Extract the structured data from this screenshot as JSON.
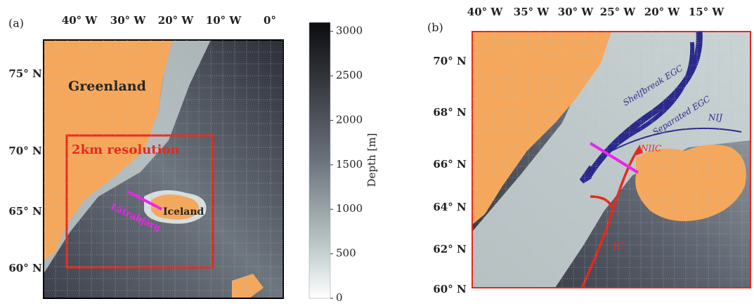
{
  "panel_a": {
    "label": "(a)",
    "lon_labels": [
      "40° W",
      "30° W",
      "20° W",
      "10° W",
      "0°"
    ],
    "lat_labels": [
      "75° N",
      "70° N",
      "65° N",
      "60° N"
    ],
    "annotations": {
      "greenland": "Greenland",
      "resolution": "2km resolution",
      "latrabjarg": "Látrabjarg",
      "iceland": "Iceland"
    }
  },
  "colorbar": {
    "label": "Depth [m]",
    "lim": [
      0,
      3100
    ],
    "ticks": [
      0,
      500,
      1000,
      1500,
      2000,
      2500,
      3000
    ]
  },
  "panel_b": {
    "label": "(b)",
    "lon_labels": [
      "40° W",
      "35° W",
      "30° W",
      "25° W",
      "20° W",
      "15° W"
    ],
    "lat_labels": [
      "70° N",
      "68° N",
      "66° N",
      "64° N",
      "62° N",
      "60° N"
    ],
    "annotations": {
      "shelfbreak": "Shelfbreak EGC",
      "separated": "Separated EGC",
      "nij": "NIJ",
      "niic": "NIIC",
      "ic": "IC"
    }
  }
}
